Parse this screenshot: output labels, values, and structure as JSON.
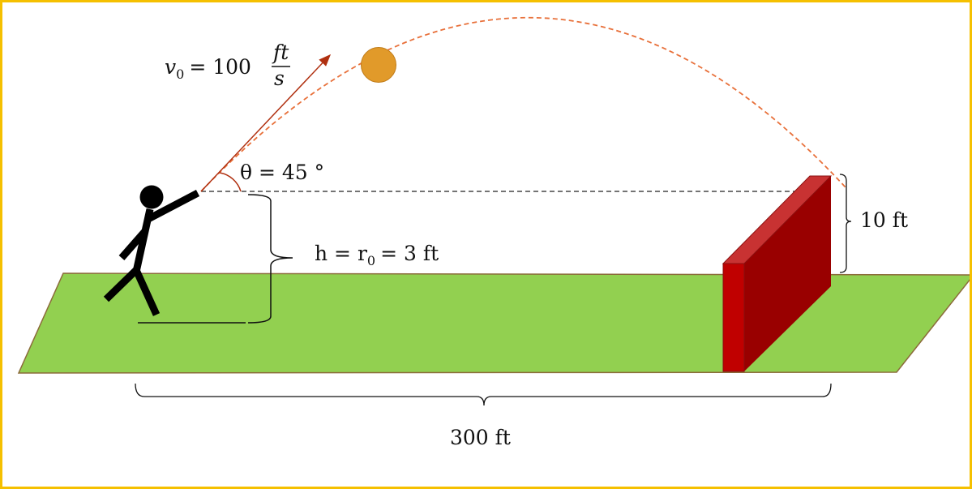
{
  "labels": {
    "velocity_lhs": "v",
    "velocity_sub": "0",
    "velocity_eq": "= 100",
    "velocity_num": "ft",
    "velocity_den": "s",
    "angle": "θ = 45 °",
    "height_h": "h = r",
    "height_sub": "0",
    "height_rest": "= 3 ft",
    "wall_height": "10 ft",
    "distance": "300 ft"
  },
  "colors": {
    "border": "#f5c000",
    "ground": "#92d050",
    "ball": "#e19a2a",
    "wall_front": "#c00000",
    "wall_top": "#c83232",
    "wall_side": "#990000",
    "trajectory": "#e8703a",
    "velocity_arrow": "#b03010"
  }
}
